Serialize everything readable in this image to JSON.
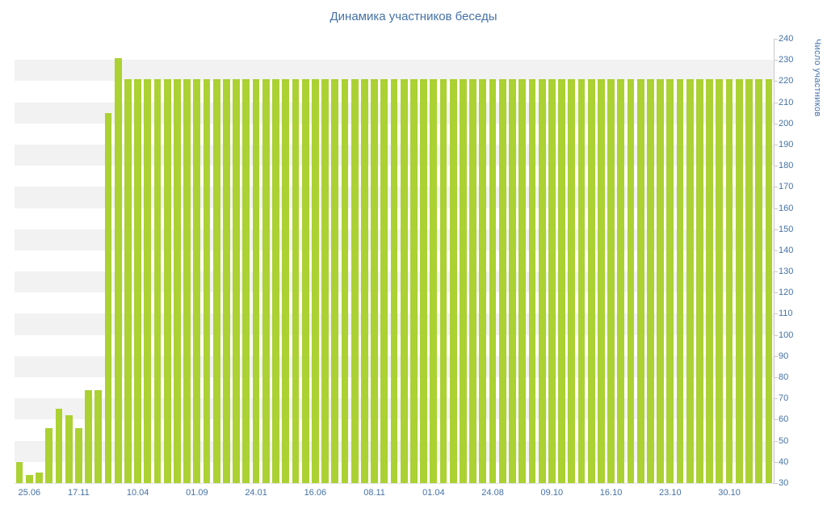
{
  "chart_data": {
    "type": "bar",
    "title": "Динамика участников беседы",
    "xlabel": "",
    "ylabel": "Число участников",
    "ylim": [
      30,
      240
    ],
    "y_tick_step": 10,
    "y_ticks": [
      30,
      40,
      50,
      60,
      70,
      80,
      90,
      100,
      110,
      120,
      130,
      140,
      150,
      160,
      170,
      180,
      190,
      200,
      210,
      220,
      230,
      240
    ],
    "grid": "alternating-horizontal-bands",
    "legend": "none",
    "y_axis_position": "right",
    "x_tick_labels": [
      "25.06",
      "17.11",
      "10.04",
      "01.09",
      "24.01",
      "16.06",
      "08.11",
      "01.04",
      "24.08",
      "09.10",
      "16.10",
      "23.10",
      "30.10"
    ],
    "x_tick_indices": [
      1,
      6,
      12,
      18,
      24,
      30,
      36,
      42,
      48,
      54,
      60,
      66,
      72
    ],
    "values": [
      40,
      34,
      35,
      56,
      65,
      62,
      56,
      74,
      74,
      205,
      231,
      221,
      221,
      221,
      221,
      221,
      221,
      221,
      221,
      221,
      221,
      221,
      221,
      221,
      221,
      221,
      221,
      221,
      221,
      221,
      221,
      221,
      221,
      221,
      221,
      221,
      221,
      221,
      221,
      221,
      221,
      221,
      221,
      221,
      221,
      221,
      221,
      221,
      221,
      221,
      221,
      221,
      221,
      221,
      221,
      221,
      221,
      221,
      221,
      221,
      221,
      221,
      221,
      221,
      221,
      221,
      221,
      221,
      221,
      221,
      221,
      221,
      221,
      221,
      221,
      221,
      221
    ]
  },
  "colors": {
    "bar": "#abd133",
    "band": "#f2f2f2",
    "title_text": "#4572a7",
    "axis_text": "#4572a7",
    "axis_line": "#c9c9c9"
  }
}
